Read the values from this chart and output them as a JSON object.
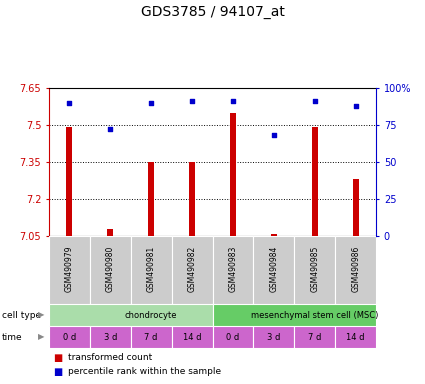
{
  "title": "GDS3785 / 94107_at",
  "samples": [
    "GSM490979",
    "GSM490980",
    "GSM490981",
    "GSM490982",
    "GSM490983",
    "GSM490984",
    "GSM490985",
    "GSM490986"
  ],
  "transformed_counts": [
    7.49,
    7.08,
    7.35,
    7.35,
    7.55,
    7.06,
    7.49,
    7.28
  ],
  "percentile_ranks": [
    90,
    72,
    90,
    91,
    91,
    68,
    91,
    88
  ],
  "ylim_left": [
    7.05,
    7.65
  ],
  "ylim_right": [
    0,
    100
  ],
  "yticks_left": [
    7.05,
    7.2,
    7.35,
    7.5,
    7.65
  ],
  "yticks_right": [
    0,
    25,
    50,
    75,
    100
  ],
  "ytick_labels_left": [
    "7.05",
    "7.2",
    "7.35",
    "7.5",
    "7.65"
  ],
  "ytick_labels_right": [
    "0",
    "25",
    "50",
    "75",
    "100%"
  ],
  "hlines": [
    7.2,
    7.35,
    7.5
  ],
  "bar_color": "#cc0000",
  "dot_color": "#0000cc",
  "cell_type_data": [
    {
      "label": "chondrocyte",
      "start": 0,
      "end": 4,
      "color": "#aaddaa"
    },
    {
      "label": "mesenchymal stem cell (MSC)",
      "start": 4,
      "end": 8,
      "color": "#66cc66"
    }
  ],
  "time_labels": [
    "0 d",
    "3 d",
    "7 d",
    "14 d",
    "0 d",
    "3 d",
    "7 d",
    "14 d"
  ],
  "time_color": "#cc66cc",
  "sample_bg_color": "#cccccc",
  "legend_red_label": "transformed count",
  "legend_blue_label": "percentile rank within the sample",
  "left_axis_color": "#cc0000",
  "right_axis_color": "#0000cc",
  "title_fontsize": 10,
  "bar_width": 0.15
}
